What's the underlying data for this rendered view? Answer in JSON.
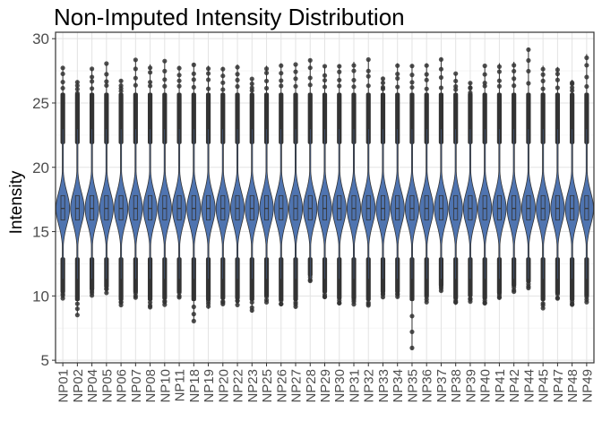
{
  "chart_data": {
    "type": "violin",
    "title": "Non-Imputed Intensity Distribution",
    "xlabel": "",
    "ylabel": "Intensity",
    "ylim": [
      4.8,
      30.5
    ],
    "yticks": [
      5,
      10,
      15,
      20,
      25,
      30
    ],
    "grid": true,
    "legend": "none",
    "fill_color": "#4f74b0",
    "outline_color": "#333333",
    "point_color": "#333333",
    "categories": [
      "NP01",
      "NP02",
      "NP04",
      "NP05",
      "NP06",
      "NP07",
      "NP08",
      "NP10",
      "NP11",
      "NP18",
      "NP19",
      "NP20",
      "NP22",
      "NP23",
      "NP25",
      "NP26",
      "NP27",
      "NP28",
      "NP29",
      "NP30",
      "NP31",
      "NP32",
      "NP33",
      "NP34",
      "NP35",
      "NP36",
      "NP37",
      "NP38",
      "NP39",
      "NP40",
      "NP41",
      "NP42",
      "NP44",
      "NP45",
      "NP47",
      "NP48",
      "NP49"
    ],
    "median": [
      16.8,
      16.8,
      16.8,
      16.8,
      16.8,
      16.8,
      16.8,
      16.8,
      16.8,
      16.8,
      16.8,
      16.8,
      16.8,
      16.8,
      16.8,
      16.8,
      16.8,
      16.8,
      16.8,
      16.8,
      16.8,
      16.8,
      16.8,
      16.8,
      16.8,
      16.8,
      16.8,
      16.8,
      16.8,
      16.8,
      16.8,
      16.8,
      16.8,
      16.8,
      16.8,
      16.8,
      16.8
    ],
    "q1": [
      15.9,
      15.9,
      15.9,
      15.9,
      15.9,
      15.9,
      15.9,
      15.9,
      15.9,
      15.9,
      15.9,
      15.9,
      15.9,
      15.9,
      15.9,
      15.9,
      15.9,
      15.9,
      15.9,
      15.9,
      15.9,
      15.9,
      15.9,
      15.9,
      15.9,
      15.9,
      15.9,
      15.9,
      15.9,
      15.9,
      15.9,
      15.9,
      15.9,
      15.9,
      15.9,
      15.9,
      15.9
    ],
    "q3": [
      17.8,
      17.8,
      17.8,
      17.8,
      17.8,
      17.8,
      17.8,
      17.8,
      17.8,
      17.8,
      17.8,
      17.8,
      17.8,
      17.8,
      17.8,
      17.8,
      17.8,
      17.8,
      17.8,
      17.8,
      17.8,
      17.8,
      17.8,
      17.8,
      17.8,
      17.8,
      17.8,
      17.8,
      17.8,
      17.8,
      17.8,
      17.8,
      17.8,
      17.8,
      17.8,
      17.8,
      17.8
    ],
    "min": [
      9.8,
      8.5,
      10.0,
      10.2,
      9.2,
      9.8,
      9.0,
      9.3,
      9.8,
      8.0,
      9.0,
      9.3,
      9.3,
      8.7,
      9.5,
      9.2,
      9.0,
      11.1,
      9.8,
      9.3,
      9.3,
      9.2,
      9.8,
      9.8,
      5.8,
      9.5,
      10.3,
      9.3,
      9.5,
      9.3,
      9.7,
      10.3,
      10.6,
      9.0,
      9.7,
      9.2,
      9.5
    ],
    "max": [
      27.8,
      26.7,
      27.7,
      28.1,
      26.8,
      28.4,
      28.0,
      28.3,
      27.9,
      28.1,
      27.9,
      27.8,
      28.0,
      26.9,
      27.9,
      28.1,
      28.0,
      28.4,
      27.9,
      28.0,
      28.2,
      28.4,
      27.0,
      28.1,
      28.0,
      28.1,
      28.5,
      27.3,
      26.6,
      27.9,
      28.1,
      28.2,
      29.3,
      27.9,
      27.8,
      26.8,
      28.8
    ]
  }
}
